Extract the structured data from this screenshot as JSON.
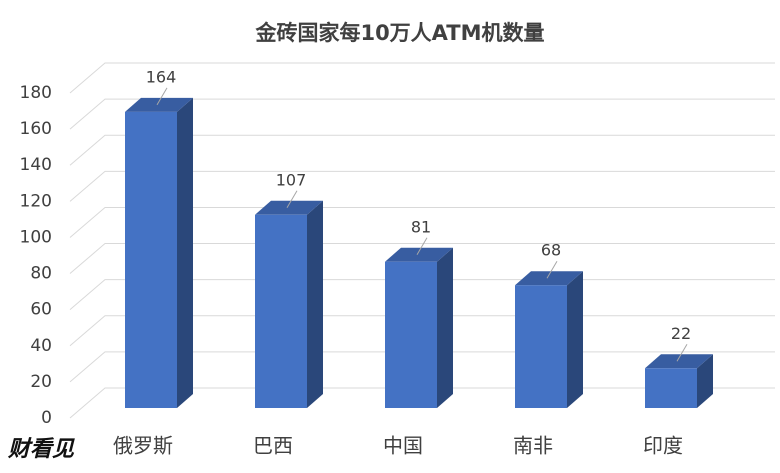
{
  "chart_data": {
    "type": "bar3d",
    "title": "金砖国家每10万人ATM机数量",
    "categories": [
      "俄罗斯",
      "巴西",
      "中国",
      "南非",
      "印度"
    ],
    "values": [
      164,
      107,
      81,
      68,
      22
    ],
    "color": "#4472c4",
    "ylim": [
      0,
      180
    ],
    "yticks": [
      0,
      20,
      40,
      60,
      80,
      100,
      120,
      140,
      160,
      180
    ],
    "grid": true
  },
  "watermark": "财看见"
}
